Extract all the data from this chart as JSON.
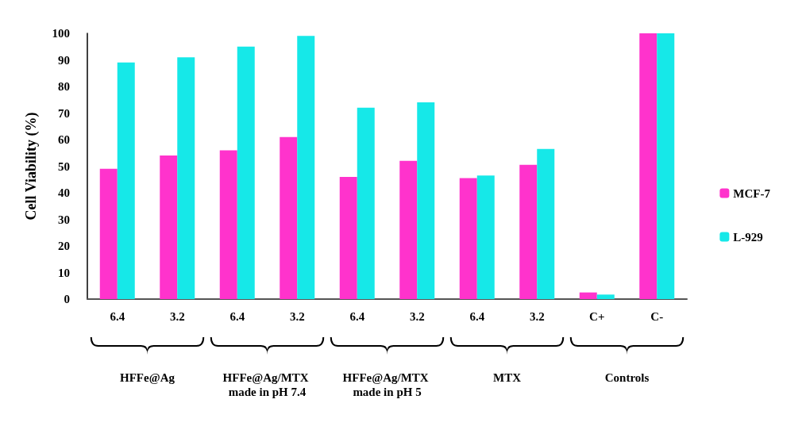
{
  "chart_data": {
    "type": "bar",
    "ylabel": "Cell Viability (%)",
    "categories": [
      "6.4",
      "3.2",
      "6.4",
      "3.2",
      "6.4",
      "3.2",
      "6.4",
      "3.2",
      "C+",
      "C-"
    ],
    "series": [
      {
        "name": "MCF-7",
        "color": "#ff33cc",
        "values": [
          49,
          54,
          56,
          61,
          46,
          52,
          45.5,
          50.5,
          2.5,
          100
        ]
      },
      {
        "name": "L-929",
        "color": "#16e8e8",
        "values": [
          89,
          91,
          95,
          99,
          72,
          74,
          46.5,
          56.5,
          1.7,
          100
        ]
      }
    ],
    "ylim": [
      0,
      100
    ],
    "yticks": [
      0,
      10,
      20,
      30,
      40,
      50,
      60,
      70,
      80,
      90,
      100
    ],
    "grid": false,
    "legend": "right",
    "annotations": [
      "HFFe@Ag",
      "HFFe@Ag/MTX made in pH 7.4",
      "HFFe@Ag/MTX made in pH 5",
      "MTX",
      "Controls"
    ]
  }
}
